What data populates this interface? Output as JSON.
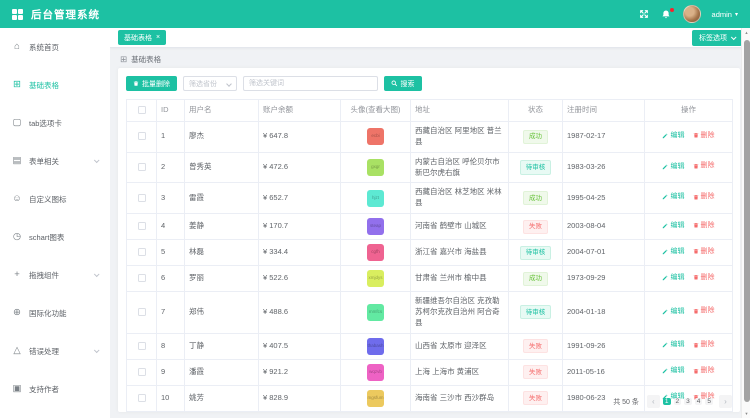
{
  "colors": {
    "primary": "#1dc1a3",
    "success": "#67c23a",
    "pending": "#1dc1a3",
    "danger": "#f56c6c",
    "content_bg": "#f0f2f5"
  },
  "header": {
    "title": "后台管理系统",
    "user": "admin",
    "icons": [
      "fullscreen-icon",
      "bell-icon",
      "user-avatar"
    ]
  },
  "sidebar": {
    "items": [
      {
        "key": "home",
        "label": "系统首页",
        "icon": "home-icon",
        "expandable": false,
        "active": false
      },
      {
        "key": "basic-table",
        "label": "基础表格",
        "icon": "table-icon",
        "expandable": false,
        "active": true
      },
      {
        "key": "tabs",
        "label": "tab选项卡",
        "icon": "tabs-icon",
        "expandable": false,
        "active": false
      },
      {
        "key": "form",
        "label": "表单相关",
        "icon": "form-icon",
        "expandable": true,
        "active": false
      },
      {
        "key": "custom-icon",
        "label": "自定义图标",
        "icon": "smiley-icon",
        "expandable": false,
        "active": false
      },
      {
        "key": "schart",
        "label": "schart图表",
        "icon": "chart-icon",
        "expandable": false,
        "active": false
      },
      {
        "key": "drag",
        "label": "拖拽组件",
        "icon": "drag-icon",
        "expandable": true,
        "active": false
      },
      {
        "key": "i18n",
        "label": "国际化功能",
        "icon": "globe-icon",
        "expandable": false,
        "active": false
      },
      {
        "key": "error",
        "label": "错误处理",
        "icon": "warning-icon",
        "expandable": true,
        "active": false
      },
      {
        "key": "donate",
        "label": "支持作者",
        "icon": "author-icon",
        "expandable": false,
        "active": false
      }
    ]
  },
  "tabs": {
    "items": [
      {
        "label": "基础表格",
        "closable": true,
        "active": true
      }
    ],
    "options_button": "标签选项"
  },
  "breadcrumb": {
    "label": "基础表格"
  },
  "toolbar": {
    "delete_button": "批量删除",
    "province_placeholder": "筛选省份",
    "keyword_placeholder": "筛选关键词",
    "search_button": "搜索"
  },
  "table": {
    "columns": [
      "ID",
      "用户名",
      "账户余额",
      "头像(查看大图)",
      "地址",
      "状态",
      "注册时间",
      "操作"
    ],
    "edit_label": "编辑",
    "delete_label": "删除",
    "rows": [
      {
        "id": 1,
        "name": "廖杰",
        "balance": "¥ 647.8",
        "avatar_color": "#ee7468",
        "avatar_text": "ecbi",
        "address": "西藏自治区 阿里地区 普兰县",
        "status": "成功",
        "status_type": "success",
        "date": "1987-02-17"
      },
      {
        "id": 2,
        "name": "曾秀英",
        "balance": "¥ 472.6",
        "avatar_color": "#a9e164",
        "avatar_text": "gxgr",
        "address": "内蒙古自治区 呼伦贝尔市 新巴尔虎右旗",
        "status": "待审核",
        "status_type": "pending",
        "date": "1983-03-26"
      },
      {
        "id": 3,
        "name": "雷霞",
        "balance": "¥ 652.7",
        "avatar_color": "#5de9d3",
        "avatar_text": "hjzt",
        "address": "西藏自治区 林芝地区 米林县",
        "status": "成功",
        "status_type": "success",
        "date": "1995-04-25"
      },
      {
        "id": 4,
        "name": "姜静",
        "balance": "¥ 170.7",
        "avatar_color": "#9270ec",
        "avatar_text": "steap",
        "address": "河南省 鹤壁市 山城区",
        "status": "失败",
        "status_type": "danger",
        "date": "2003-08-04"
      },
      {
        "id": 5,
        "name": "林磊",
        "balance": "¥ 334.4",
        "avatar_color": "#ef6391",
        "avatar_text": "cgfh",
        "address": "浙江省 嘉兴市 海盐县",
        "status": "待审核",
        "status_type": "pending",
        "date": "2004-07-01"
      },
      {
        "id": 6,
        "name": "罗丽",
        "balance": "¥ 522.6",
        "avatar_color": "#d9ee5f",
        "avatar_text": "xmjdys",
        "address": "甘肃省 兰州市 榆中县",
        "status": "成功",
        "status_type": "success",
        "date": "1973-09-29"
      },
      {
        "id": 7,
        "name": "郑伟",
        "balance": "¥ 488.6",
        "avatar_color": "#62e9a2",
        "avatar_text": "mmfcs",
        "address": "新疆维吾尔自治区 克孜勒苏柯尔克孜自治州 阿合奇县",
        "status": "待审核",
        "status_type": "pending",
        "date": "2004-01-18"
      },
      {
        "id": 8,
        "name": "丁静",
        "balance": "¥ 407.5",
        "avatar_color": "#6f6cec",
        "avatar_text": "thabash",
        "address": "山西省 太原市 迎泽区",
        "status": "失败",
        "status_type": "danger",
        "date": "1991-09-26"
      },
      {
        "id": 9,
        "name": "潘霞",
        "balance": "¥ 921.2",
        "avatar_color": "#ee62c4",
        "avatar_text": "wqzvb",
        "address": "上海 上海市 黄浦区",
        "status": "失败",
        "status_type": "danger",
        "date": "2011-05-16"
      },
      {
        "id": 10,
        "name": "姚芳",
        "balance": "¥ 828.9",
        "avatar_color": "#ecc95e",
        "avatar_text": "mgsfum",
        "address": "海南省 三沙市 西沙群岛",
        "status": "失败",
        "status_type": "danger",
        "date": "1980-06-23"
      }
    ]
  },
  "pagination": {
    "total": "共 50 条",
    "pages": [
      "1",
      "2",
      "3",
      "4",
      "5"
    ],
    "active_page": "1"
  }
}
